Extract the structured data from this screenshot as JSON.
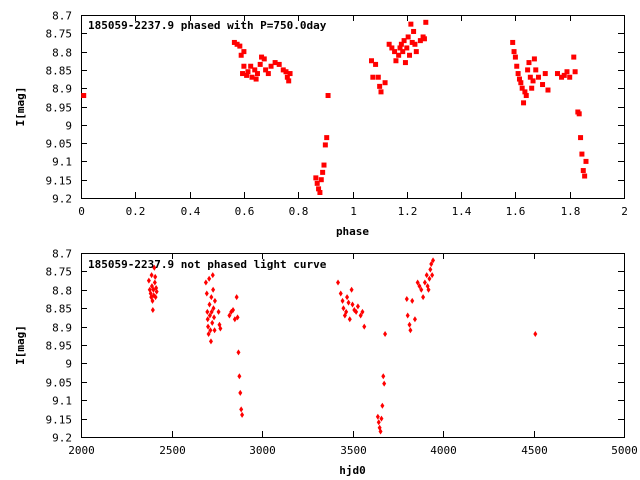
{
  "chart_data": [
    {
      "type": "scatter",
      "title": "185059-2237.9 phased with P=750.0day",
      "xlabel": "phase",
      "ylabel": "I[mag]",
      "xlim": [
        0,
        2
      ],
      "ylim": [
        9.2,
        8.7
      ],
      "y_inverted": true,
      "grid": false,
      "marker_color": "#ff0000",
      "xticks": [
        "0",
        "0.2",
        "0.4",
        "0.6",
        "0.8",
        "1",
        "1.2",
        "1.4",
        "1.6",
        "1.8",
        "2"
      ],
      "yticks": [
        "8.7",
        "8.75",
        "8.8",
        "8.85",
        "8.9",
        "8.95",
        "9",
        "9.05",
        "9.1",
        "9.15",
        "9.2"
      ],
      "series": [
        {
          "points": [
            [
              0.01,
              8.92
            ],
            [
              0.565,
              8.775
            ],
            [
              0.575,
              8.78
            ],
            [
              0.585,
              8.785
            ],
            [
              0.59,
              8.81
            ],
            [
              0.6,
              8.8
            ],
            [
              0.6,
              8.84
            ],
            [
              0.595,
              8.86
            ],
            [
              0.61,
              8.865
            ],
            [
              0.615,
              8.855
            ],
            [
              0.625,
              8.84
            ],
            [
              0.63,
              8.87
            ],
            [
              0.64,
              8.85
            ],
            [
              0.645,
              8.875
            ],
            [
              0.65,
              8.86
            ],
            [
              0.66,
              8.835
            ],
            [
              0.665,
              8.815
            ],
            [
              0.675,
              8.82
            ],
            [
              0.68,
              8.85
            ],
            [
              0.69,
              8.86
            ],
            [
              0.7,
              8.84
            ],
            [
              0.715,
              8.83
            ],
            [
              0.73,
              8.835
            ],
            [
              0.745,
              8.85
            ],
            [
              0.755,
              8.855
            ],
            [
              0.76,
              8.87
            ],
            [
              0.765,
              8.88
            ],
            [
              0.77,
              8.86
            ],
            [
              0.865,
              9.145
            ],
            [
              0.87,
              9.16
            ],
            [
              0.875,
              9.175
            ],
            [
              0.88,
              9.185
            ],
            [
              0.885,
              9.15
            ],
            [
              0.89,
              9.13
            ],
            [
              0.895,
              9.11
            ],
            [
              0.9,
              9.055
            ],
            [
              0.905,
              9.035
            ],
            [
              0.91,
              8.92
            ],
            [
              1.07,
              8.825
            ],
            [
              1.075,
              8.87
            ],
            [
              1.085,
              8.835
            ],
            [
              1.095,
              8.87
            ],
            [
              1.1,
              8.895
            ],
            [
              1.105,
              8.91
            ],
            [
              1.12,
              8.885
            ],
            [
              1.135,
              8.78
            ],
            [
              1.145,
              8.79
            ],
            [
              1.155,
              8.8
            ],
            [
              1.16,
              8.825
            ],
            [
              1.17,
              8.81
            ],
            [
              1.175,
              8.79
            ],
            [
              1.18,
              8.78
            ],
            [
              1.185,
              8.8
            ],
            [
              1.19,
              8.77
            ],
            [
              1.195,
              8.83
            ],
            [
              1.2,
              8.79
            ],
            [
              1.205,
              8.76
            ],
            [
              1.21,
              8.81
            ],
            [
              1.215,
              8.725
            ],
            [
              1.22,
              8.775
            ],
            [
              1.225,
              8.745
            ],
            [
              1.23,
              8.78
            ],
            [
              1.235,
              8.8
            ],
            [
              1.25,
              8.77
            ],
            [
              1.26,
              8.76
            ],
            [
              1.265,
              8.765
            ],
            [
              1.27,
              8.72
            ],
            [
              1.59,
              8.775
            ],
            [
              1.595,
              8.8
            ],
            [
              1.6,
              8.815
            ],
            [
              1.605,
              8.84
            ],
            [
              1.61,
              8.86
            ],
            [
              1.615,
              8.875
            ],
            [
              1.62,
              8.885
            ],
            [
              1.625,
              8.9
            ],
            [
              1.63,
              8.94
            ],
            [
              1.635,
              8.91
            ],
            [
              1.64,
              8.92
            ],
            [
              1.645,
              8.85
            ],
            [
              1.65,
              8.83
            ],
            [
              1.655,
              8.87
            ],
            [
              1.66,
              8.9
            ],
            [
              1.665,
              8.88
            ],
            [
              1.67,
              8.82
            ],
            [
              1.675,
              8.85
            ],
            [
              1.685,
              8.87
            ],
            [
              1.7,
              8.89
            ],
            [
              1.71,
              8.86
            ],
            [
              1.72,
              8.905
            ],
            [
              1.755,
              8.86
            ],
            [
              1.77,
              8.87
            ],
            [
              1.78,
              8.865
            ],
            [
              1.79,
              8.855
            ],
            [
              1.8,
              8.87
            ],
            [
              1.815,
              8.815
            ],
            [
              1.82,
              8.855
            ],
            [
              1.83,
              8.965
            ],
            [
              1.835,
              8.97
            ],
            [
              1.84,
              9.035
            ],
            [
              1.845,
              9.08
            ],
            [
              1.85,
              9.125
            ],
            [
              1.855,
              9.14
            ],
            [
              1.86,
              9.1
            ]
          ]
        }
      ]
    },
    {
      "type": "scatter",
      "title": "185059-2237.9 not phased light curve",
      "xlabel": "hjd0",
      "ylabel": "I[mag]",
      "xlim": [
        2000,
        5000
      ],
      "ylim": [
        9.2,
        8.7
      ],
      "y_inverted": true,
      "grid": false,
      "marker_color": "#ff0000",
      "xticks": [
        "2000",
        "2500",
        "3000",
        "3500",
        "4000",
        "4500",
        "5000"
      ],
      "yticks": [
        "8.7",
        "8.75",
        "8.8",
        "8.85",
        "8.9",
        "8.95",
        "9",
        "9.05",
        "9.1",
        "9.15",
        "9.2"
      ],
      "series": [
        {
          "points": [
            [
              2375,
              8.775
            ],
            [
              2380,
              8.8
            ],
            [
              2385,
              8.81
            ],
            [
              2388,
              8.82
            ],
            [
              2390,
              8.76
            ],
            [
              2392,
              8.79
            ],
            [
              2395,
              8.83
            ],
            [
              2397,
              8.855
            ],
            [
              2400,
              8.8
            ],
            [
              2402,
              8.815
            ],
            [
              2405,
              8.74
            ],
            [
              2408,
              8.78
            ],
            [
              2410,
              8.765
            ],
            [
              2412,
              8.82
            ],
            [
              2415,
              8.795
            ],
            [
              2418,
              8.805
            ],
            [
              2690,
              8.78
            ],
            [
              2695,
              8.81
            ],
            [
              2698,
              8.86
            ],
            [
              2700,
              8.88
            ],
            [
              2702,
              8.9
            ],
            [
              2705,
              8.92
            ],
            [
              2708,
              8.77
            ],
            [
              2710,
              8.84
            ],
            [
              2712,
              8.87
            ],
            [
              2715,
              8.91
            ],
            [
              2718,
              8.94
            ],
            [
              2720,
              8.82
            ],
            [
              2722,
              8.86
            ],
            [
              2725,
              8.89
            ],
            [
              2728,
              8.76
            ],
            [
              2730,
              8.8
            ],
            [
              2732,
              8.85
            ],
            [
              2735,
              8.875
            ],
            [
              2738,
              8.91
            ],
            [
              2740,
              8.83
            ],
            [
              2760,
              8.86
            ],
            [
              2765,
              8.895
            ],
            [
              2770,
              8.905
            ],
            [
              2820,
              8.87
            ],
            [
              2830,
              8.86
            ],
            [
              2840,
              8.855
            ],
            [
              2850,
              8.88
            ],
            [
              2860,
              8.82
            ],
            [
              2865,
              8.875
            ],
            [
              2870,
              8.97
            ],
            [
              2875,
              9.035
            ],
            [
              2880,
              9.08
            ],
            [
              2885,
              9.125
            ],
            [
              2890,
              9.14
            ],
            [
              3420,
              8.78
            ],
            [
              3435,
              8.81
            ],
            [
              3445,
              8.83
            ],
            [
              3450,
              8.85
            ],
            [
              3458,
              8.87
            ],
            [
              3465,
              8.86
            ],
            [
              3470,
              8.82
            ],
            [
              3478,
              8.835
            ],
            [
              3485,
              8.88
            ],
            [
              3495,
              8.8
            ],
            [
              3500,
              8.84
            ],
            [
              3510,
              8.855
            ],
            [
              3520,
              8.86
            ],
            [
              3530,
              8.845
            ],
            [
              3545,
              8.87
            ],
            [
              3555,
              8.86
            ],
            [
              3565,
              8.9
            ],
            [
              3640,
              9.145
            ],
            [
              3645,
              9.16
            ],
            [
              3650,
              9.175
            ],
            [
              3655,
              9.185
            ],
            [
              3660,
              9.15
            ],
            [
              3665,
              9.115
            ],
            [
              3670,
              9.035
            ],
            [
              3675,
              9.055
            ],
            [
              3680,
              8.92
            ],
            [
              3800,
              8.825
            ],
            [
              3805,
              8.87
            ],
            [
              3815,
              8.895
            ],
            [
              3820,
              8.91
            ],
            [
              3830,
              8.83
            ],
            [
              3845,
              8.88
            ],
            [
              3860,
              8.78
            ],
            [
              3870,
              8.79
            ],
            [
              3880,
              8.8
            ],
            [
              3890,
              8.82
            ],
            [
              3900,
              8.78
            ],
            [
              3910,
              8.76
            ],
            [
              3915,
              8.79
            ],
            [
              3920,
              8.8
            ],
            [
              3925,
              8.77
            ],
            [
              3930,
              8.745
            ],
            [
              3935,
              8.73
            ],
            [
              3940,
              8.76
            ],
            [
              3945,
              8.72
            ],
            [
              4510,
              8.92
            ]
          ]
        }
      ]
    }
  ]
}
